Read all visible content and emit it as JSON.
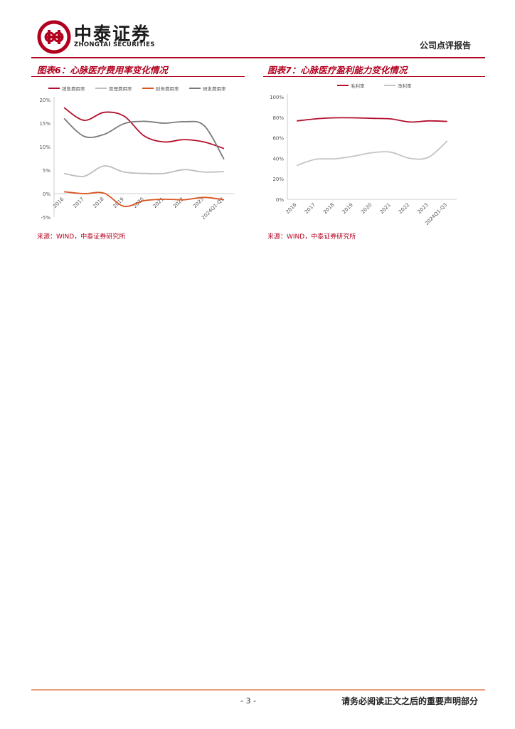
{
  "header": {
    "brand_cn": "中泰证券",
    "brand_en": "ZHONGTAI SECURITIES",
    "report_type": "公司点评报告"
  },
  "figures": [
    {
      "title": "图表6：心脉医疗费用率变化情况",
      "source": "来源：WIND，中泰证券研究所"
    },
    {
      "title": "图表7：心脉医疗盈利能力变化情况",
      "source": "来源：WIND，中泰证券研究所"
    }
  ],
  "chart_data": [
    {
      "type": "line",
      "categories": [
        "2016",
        "2017",
        "2018",
        "2019",
        "2020",
        "2021",
        "2022",
        "2023",
        "2024Q1-Q3"
      ],
      "tick_labels": [
        "2016",
        "2017",
        "2018",
        "2019",
        "2020",
        "2021",
        "2022",
        "2023",
        "2024Q1-Q3"
      ],
      "ylim": [
        -5,
        20
      ],
      "yticks": [
        -5,
        0,
        5,
        10,
        15,
        20
      ],
      "y_format": "percent",
      "legend_position": "top",
      "grid": false,
      "series": [
        {
          "name": "销售费用率",
          "color": "#b2102c",
          "values": [
            18.3,
            15.6,
            17.3,
            16.5,
            12.3,
            11.0,
            11.5,
            11.0,
            9.6
          ]
        },
        {
          "name": "管理费用率",
          "color": "#bdbdbd",
          "values": [
            4.3,
            3.7,
            5.9,
            4.6,
            4.3,
            4.3,
            5.1,
            4.6,
            4.7
          ]
        },
        {
          "name": "财务费用率",
          "color": "#d9531e",
          "values": [
            0.4,
            0.0,
            0.1,
            -2.7,
            -1.5,
            -1.2,
            -1.3,
            -0.8,
            -1.3
          ]
        },
        {
          "name": "研发费用率",
          "color": "#7a7a7a",
          "values": [
            16.0,
            12.2,
            12.6,
            14.9,
            15.4,
            15.0,
            15.3,
            14.5,
            7.3
          ]
        }
      ]
    },
    {
      "type": "line",
      "categories": [
        "2016",
        "2017",
        "2018",
        "2019",
        "2020",
        "2021",
        "2022",
        "2023",
        "2024Q1-Q3"
      ],
      "tick_labels": [
        "2016",
        "2017",
        "2018",
        "2019",
        "2020",
        "2021",
        "2022",
        "2023",
        "2024Q1-Q3"
      ],
      "ylim": [
        0,
        100
      ],
      "yticks": [
        0,
        20,
        40,
        60,
        80,
        100
      ],
      "y_format": "percent",
      "legend_position": "top",
      "grid": false,
      "series": [
        {
          "name": "毛利率",
          "color": "#b2102c",
          "values": [
            76.5,
            78.5,
            79.5,
            79.5,
            79.0,
            78.5,
            75.5,
            76.5,
            76.0
          ]
        },
        {
          "name": "净利率",
          "color": "#c4c4c4",
          "values": [
            33.0,
            39.0,
            39.5,
            42.0,
            45.5,
            46.0,
            40.0,
            41.0,
            57.0
          ]
        }
      ]
    }
  ],
  "footer": {
    "page_number": "- 3 -",
    "disclaimer": "请务必阅读正文之后的重要声明部分"
  },
  "colors": {
    "brand_red": "#b2001f",
    "footer_rule": "#e8a07c"
  }
}
